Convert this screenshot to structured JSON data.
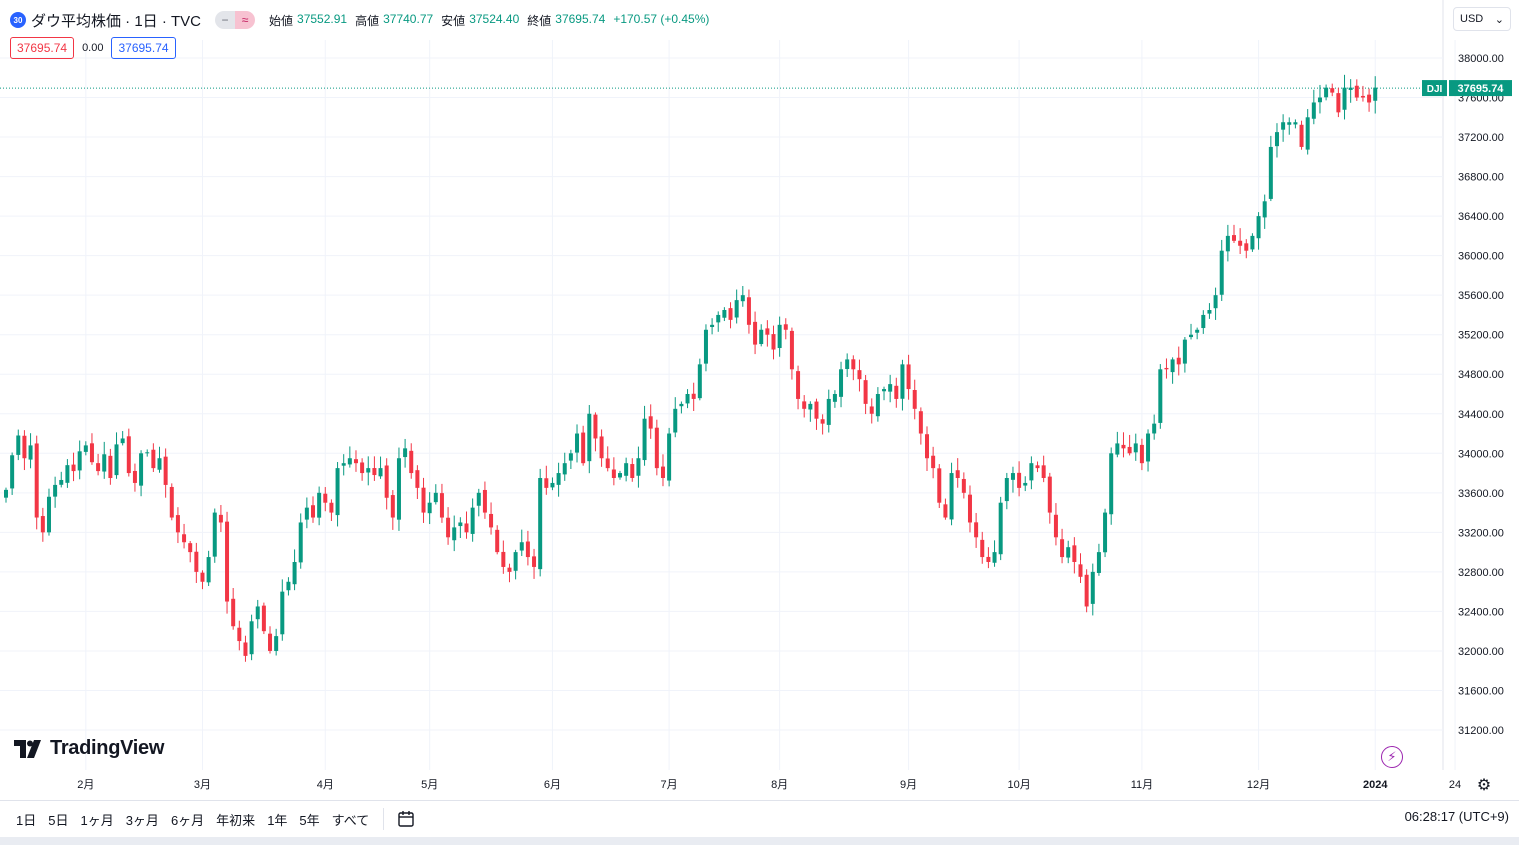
{
  "legend": {
    "symbol_badge": "30",
    "title": "ダウ平均株価 · 1日 · TVC",
    "toggle_left": "−",
    "toggle_right": "≈",
    "ohlc": [
      {
        "label": "始値",
        "value": "37552.91"
      },
      {
        "label": "高値",
        "value": "37740.77"
      },
      {
        "label": "安値",
        "value": "37524.40"
      },
      {
        "label": "終値",
        "value": "37695.74"
      },
      {
        "label": "",
        "value": "+170.57 (+0.45%)"
      }
    ],
    "bid": "37695.74",
    "spread": "0.00",
    "ask": "37695.74"
  },
  "currency": "USD",
  "price_tag": {
    "symbol": "DJI",
    "value": "37695.74"
  },
  "logo": "TradingView",
  "timeframes": [
    "1日",
    "5日",
    "1ヶ月",
    "3ヶ月",
    "6ヶ月",
    "年初来",
    "1年",
    "5年",
    "すべて"
  ],
  "clock": "06:28:17 (UTC+9)",
  "colors": {
    "up": "#089981",
    "down": "#f23645",
    "grid": "#f0f3fa",
    "accent": "#2962ff"
  },
  "chart_data": {
    "type": "candlestick",
    "title": "ダウ平均株価 · 1日 · TVC",
    "last_price": 37695.74,
    "y_ticks": [
      38000,
      37600,
      37200,
      36800,
      36400,
      36000,
      35600,
      35200,
      34800,
      34400,
      34000,
      33600,
      33200,
      32800,
      32400,
      32000,
      31600,
      31200
    ],
    "ylim": [
      30950,
      38200
    ],
    "x_labels": [
      {
        "label": "2月",
        "t": 13
      },
      {
        "label": "3月",
        "t": 32
      },
      {
        "label": "4月",
        "t": 52
      },
      {
        "label": "5月",
        "t": 69
      },
      {
        "label": "6月",
        "t": 89
      },
      {
        "label": "7月",
        "t": 108
      },
      {
        "label": "8月",
        "t": 126
      },
      {
        "label": "9月",
        "t": 147
      },
      {
        "label": "10月",
        "t": 165
      },
      {
        "label": "11月",
        "t": 185
      },
      {
        "label": "12月",
        "t": 204
      },
      {
        "label": "2024",
        "t": 223
      },
      {
        "label": "24",
        "t": 236
      }
    ],
    "closes": [
      33630,
      33980,
      34180,
      33950,
      34080,
      33350,
      33200,
      33560,
      33680,
      33730,
      33880,
      33820,
      34020,
      34080,
      33910,
      33820,
      33990,
      33750,
      34090,
      34150,
      33800,
      33700,
      34000,
      34010,
      33850,
      33950,
      33680,
      33350,
      33200,
      33100,
      33000,
      32800,
      32700,
      32950,
      33400,
      33300,
      32500,
      32250,
      32100,
      31950,
      32300,
      32450,
      32200,
      32000,
      32150,
      32600,
      32700,
      32900,
      33300,
      33450,
      33350,
      33600,
      33500,
      33400,
      33850,
      33900,
      33950,
      33900,
      33800,
      33850,
      33780,
      33850,
      33550,
      33350,
      33950,
      34050,
      33800,
      33650,
      33400,
      33500,
      33600,
      33350,
      33150,
      33250,
      33300,
      33200,
      33450,
      33600,
      33400,
      33250,
      33000,
      32850,
      32800,
      33000,
      33100,
      32950,
      32850,
      33750,
      33650,
      33700,
      33800,
      33900,
      34000,
      34200,
      33900,
      34400,
      34150,
      33950,
      33850,
      33750,
      33800,
      33900,
      33750,
      33950,
      34350,
      34250,
      33850,
      33750,
      34200,
      34450,
      34500,
      34600,
      34550,
      34900,
      35250,
      35300,
      35400,
      35450,
      35350,
      35550,
      35600,
      35300,
      35100,
      35250,
      35200,
      35050,
      35300,
      35250,
      34850,
      34550,
      34450,
      34500,
      34350,
      34300,
      34550,
      34600,
      34850,
      34950,
      34850,
      34750,
      34500,
      34400,
      34600,
      34650,
      34700,
      34550,
      34900,
      34650,
      34450,
      34200,
      33950,
      33850,
      33500,
      33350,
      33800,
      33750,
      33600,
      33300,
      33150,
      32950,
      32900,
      33000,
      33500,
      33750,
      33800,
      33650,
      33700,
      33900,
      33850,
      33750,
      33400,
      33150,
      32950,
      33050,
      32900,
      32750,
      32450,
      32800,
      33000,
      33400,
      34000,
      34100,
      34050,
      34000,
      34100,
      33900,
      34200,
      34300,
      34850,
      34850,
      34950,
      34900,
      35150,
      35200,
      35250,
      35400,
      35450,
      35600,
      36050,
      36200,
      36150,
      36100,
      36050,
      36200,
      36400,
      36550,
      37100,
      37250,
      37350,
      37350,
      37350,
      37100,
      37400,
      37550,
      37600,
      37700,
      37650,
      37450,
      37700,
      37700,
      37600,
      37600,
      37550,
      37700
    ]
  }
}
